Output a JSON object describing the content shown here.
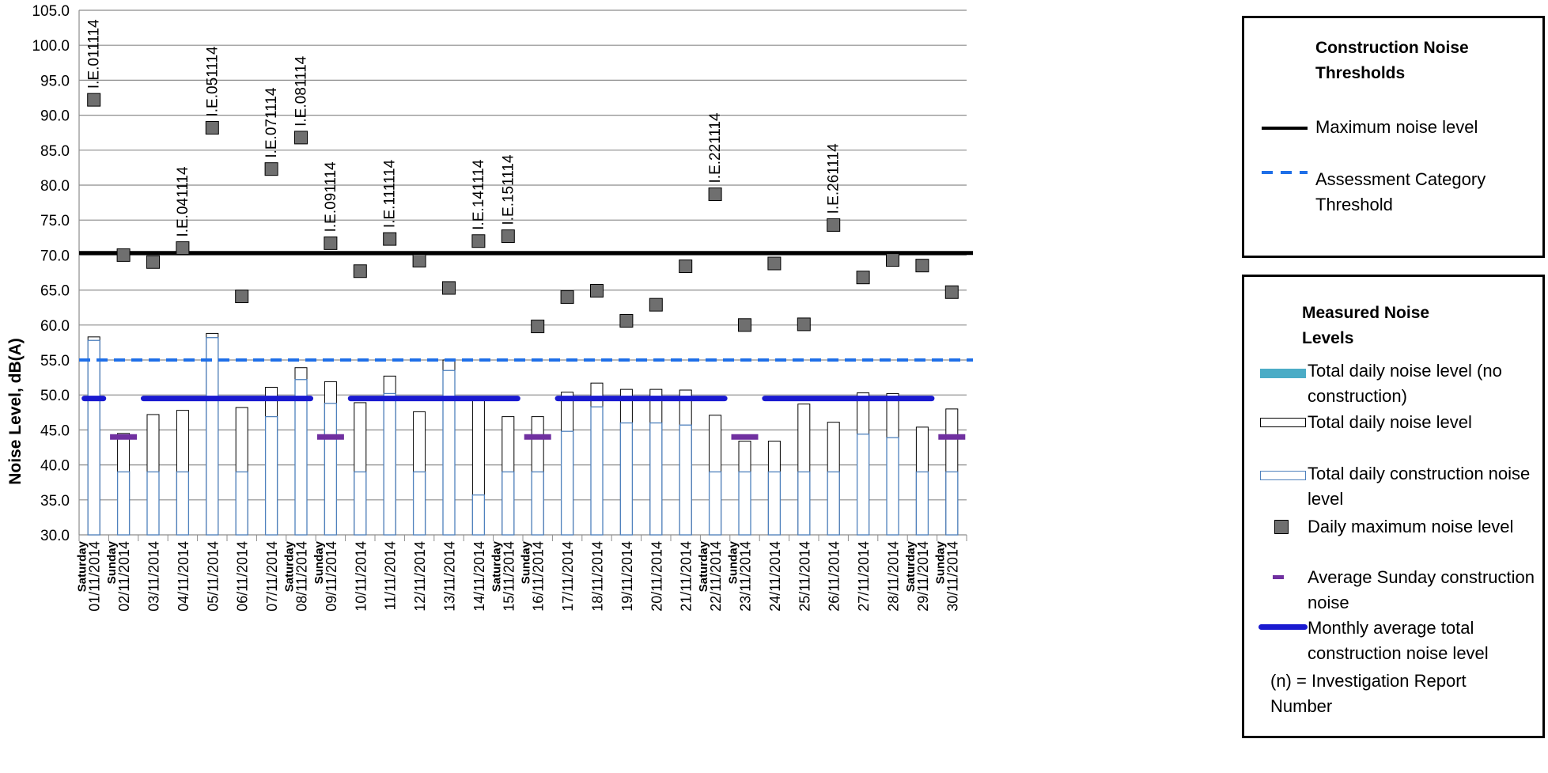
{
  "chart_data": {
    "type": "bar",
    "ylabel": "Noise Level, dB(A)",
    "ylim": [
      30,
      105
    ],
    "ytick_step": 5,
    "grid": true,
    "categories": [
      {
        "day": "Saturday",
        "date": "01/11/2014"
      },
      {
        "day": "Sunday",
        "date": "02/11/2014"
      },
      {
        "day": "",
        "date": "03/11/2014"
      },
      {
        "day": "",
        "date": "04/11/2014"
      },
      {
        "day": "",
        "date": "05/11/2014"
      },
      {
        "day": "",
        "date": "06/11/2014"
      },
      {
        "day": "",
        "date": "07/11/2014"
      },
      {
        "day": "Saturday",
        "date": "08/11/2014"
      },
      {
        "day": "Sunday",
        "date": "09/11/2014"
      },
      {
        "day": "",
        "date": "10/11/2014"
      },
      {
        "day": "",
        "date": "11/11/2014"
      },
      {
        "day": "",
        "date": "12/11/2014"
      },
      {
        "day": "",
        "date": "13/11/2014"
      },
      {
        "day": "",
        "date": "14/11/2014"
      },
      {
        "day": "Saturday",
        "date": "15/11/2014"
      },
      {
        "day": "Sunday",
        "date": "16/11/2014"
      },
      {
        "day": "",
        "date": "17/11/2014"
      },
      {
        "day": "",
        "date": "18/11/2014"
      },
      {
        "day": "",
        "date": "19/11/2014"
      },
      {
        "day": "",
        "date": "20/11/2014"
      },
      {
        "day": "",
        "date": "21/11/2014"
      },
      {
        "day": "Saturday",
        "date": "22/11/2014"
      },
      {
        "day": "Sunday",
        "date": "23/11/2014"
      },
      {
        "day": "",
        "date": "24/11/2014"
      },
      {
        "day": "",
        "date": "25/11/2014"
      },
      {
        "day": "",
        "date": "26/11/2014"
      },
      {
        "day": "",
        "date": "27/11/2014"
      },
      {
        "day": "",
        "date": "28/11/2014"
      },
      {
        "day": "Saturday",
        "date": "29/11/2014"
      },
      {
        "day": "Sunday",
        "date": "30/11/2014"
      }
    ],
    "series": [
      {
        "name": "Total daily noise level",
        "values": [
          58.3,
          44.5,
          47.2,
          47.8,
          58.8,
          48.2,
          51.1,
          53.9,
          51.9,
          48.9,
          52.7,
          47.6,
          55.0,
          49.4,
          46.9,
          46.9,
          50.4,
          51.7,
          50.8,
          50.8,
          50.7,
          47.1,
          43.4,
          43.4,
          48.7,
          46.1,
          50.3,
          50.2,
          45.4,
          48.0
        ]
      },
      {
        "name": "Total daily construction noise level",
        "values": [
          57.8,
          39.0,
          39.0,
          39.0,
          58.2,
          39.0,
          46.9,
          52.2,
          48.8,
          39.0,
          50.2,
          39.0,
          53.5,
          35.7,
          39.0,
          39.0,
          44.8,
          48.3,
          46.0,
          46.0,
          45.7,
          39.0,
          39.0,
          39.0,
          39.0,
          39.0,
          44.4,
          43.9,
          39.0,
          39.0
        ]
      },
      {
        "name": "Daily maximum noise level",
        "values": [
          92.2,
          70.0,
          69.0,
          71.0,
          88.2,
          64.1,
          82.3,
          86.8,
          71.7,
          67.7,
          72.3,
          69.2,
          65.3,
          72.0,
          72.7,
          59.8,
          64.0,
          64.9,
          60.6,
          62.9,
          68.4,
          78.7,
          60.0,
          68.8,
          60.1,
          74.3,
          66.8,
          69.3,
          68.5,
          64.7
        ]
      }
    ],
    "annotations": [
      {
        "index": 0,
        "text": "I.E.011114"
      },
      {
        "index": 3,
        "text": "I.E.041114"
      },
      {
        "index": 4,
        "text": "I.E.051114"
      },
      {
        "index": 6,
        "text": "I.E.071114"
      },
      {
        "index": 7,
        "text": "I.E.081114"
      },
      {
        "index": 8,
        "text": "I.E.091114"
      },
      {
        "index": 10,
        "text": "I.E.111114"
      },
      {
        "index": 13,
        "text": "I.E.141114"
      },
      {
        "index": 14,
        "text": "I.E.151114"
      },
      {
        "index": 21,
        "text": "I.E.221114"
      },
      {
        "index": 25,
        "text": "I.E.261114"
      }
    ],
    "max_noise_level": 70.3,
    "assessment_threshold": 55.0,
    "sunday_average": {
      "value": 44.0,
      "indices": [
        1,
        8,
        15,
        22,
        29
      ]
    },
    "monthly_average_segments": [
      {
        "from": 0,
        "to": 0,
        "value": 49.5
      },
      {
        "from": 2,
        "to": 7,
        "value": 49.5
      },
      {
        "from": 9,
        "to": 14,
        "value": 49.5
      },
      {
        "from": 16,
        "to": 21,
        "value": 49.5
      },
      {
        "from": 23,
        "to": 28,
        "value": 49.5
      }
    ]
  },
  "colors": {
    "grid": "#8c8c8c",
    "max_line": "#000000",
    "threshold_line": "#1f6fe8",
    "construction_bar": "#4f81bd",
    "no_construction": "#4bacc6",
    "marker_fill": "#6f6f6f",
    "sunday_avg": "#7030a0",
    "monthly_avg": "#1a1ad0"
  },
  "legend_thresholds": {
    "title": "Construction Noise Thresholds",
    "items": [
      "Maximum noise level",
      "Assessment Category Threshold"
    ]
  },
  "legend_measured": {
    "title": "Measured Noise Levels",
    "items": [
      "Total daily noise level (no construction)",
      "Total daily noise level",
      "Total daily construction noise level",
      "Daily maximum noise level",
      "Average Sunday construction noise",
      "Monthly average total construction noise level"
    ],
    "note": "(n) = Investigation Report Number"
  }
}
